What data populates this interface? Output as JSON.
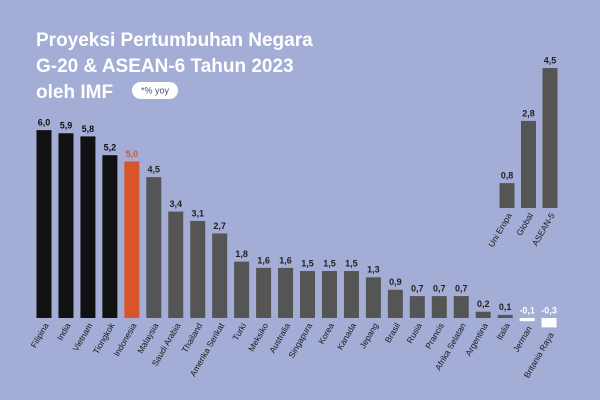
{
  "chart_data": [
    {
      "type": "bar",
      "title": [
        "Proyeksi Pertumbuhan Negara",
        "G-20 & ASEAN-6 Tahun 2023",
        "oleh IMF"
      ],
      "note": "*% yoy",
      "categories": [
        "Filipina",
        "India",
        "Vietnam",
        "Tiongkok",
        "Indonesia",
        "Malaysia",
        "Saudi Arabia",
        "Thailand",
        "Amerika Serikat",
        "Turki",
        "Meksiko",
        "Australia",
        "Singapura",
        "Korea",
        "Kanada",
        "Jepang",
        "Brasil",
        "Rusia",
        "Prancis",
        "Afrika Selatan",
        "Argentina",
        "Italia",
        "Jerman",
        "Britania Raya"
      ],
      "values": [
        6.0,
        5.9,
        5.8,
        5.2,
        5.0,
        4.5,
        3.4,
        3.1,
        2.7,
        1.8,
        1.6,
        1.6,
        1.5,
        1.5,
        1.5,
        1.3,
        0.9,
        0.7,
        0.7,
        0.7,
        0.2,
        0.1,
        -0.1,
        -0.3
      ],
      "value_labels": [
        "6,0",
        "5,9",
        "5,8",
        "5,2",
        "5,0",
        "4,5",
        "3,4",
        "3,1",
        "2,7",
        "1,8",
        "1,6",
        "1,6",
        "1,5",
        "1,5",
        "1,5",
        "1,3",
        "0,9",
        "0,7",
        "0,7",
        "0,7",
        "0,2",
        "0,1",
        "-0,1",
        "-0,3"
      ],
      "colors": [
        "#111111",
        "#111111",
        "#111111",
        "#111111",
        "#d9542b",
        "#555555",
        "#555555",
        "#555555",
        "#555555",
        "#555555",
        "#555555",
        "#555555",
        "#555555",
        "#555555",
        "#555555",
        "#555555",
        "#555555",
        "#555555",
        "#555555",
        "#555555",
        "#555555",
        "#555555",
        "#ffffff",
        "#ffffff"
      ],
      "label_colors": [
        "#111111",
        "#111111",
        "#111111",
        "#111111",
        "#d9542b",
        "#222222",
        "#222222",
        "#222222",
        "#222222",
        "#222222",
        "#222222",
        "#222222",
        "#222222",
        "#222222",
        "#222222",
        "#222222",
        "#222222",
        "#222222",
        "#222222",
        "#222222",
        "#222222",
        "#222222",
        "#ffffff",
        "#ffffff"
      ],
      "ylim": [
        -1,
        6.5
      ]
    },
    {
      "type": "bar",
      "categories": [
        "Uni Eropa",
        "Global",
        "ASEAN-5"
      ],
      "values": [
        0.8,
        2.8,
        4.5
      ],
      "value_labels": [
        "0,8",
        "2,8",
        "4,5"
      ],
      "colors": [
        "#555555",
        "#555555",
        "#555555"
      ],
      "label_colors": [
        "#222222",
        "#222222",
        "#222222"
      ],
      "ylim": [
        0,
        5
      ]
    }
  ]
}
